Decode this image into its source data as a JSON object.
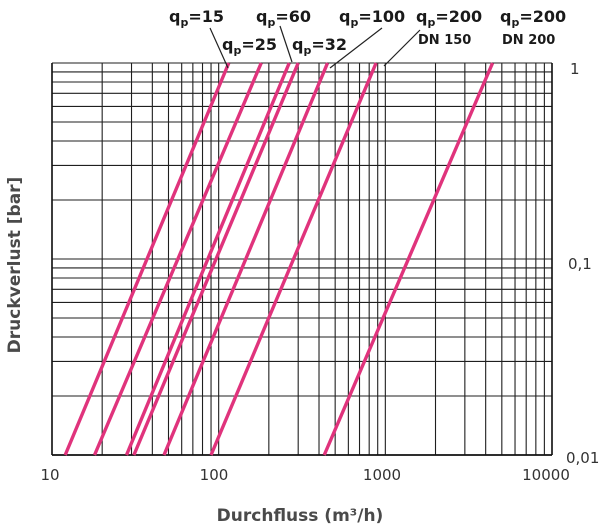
{
  "chart_data": {
    "type": "line",
    "title": "",
    "xlabel": "Durchfluss (m³/h)",
    "ylabel": "Druckverlust [bar]",
    "x_scale": "log",
    "y_scale": "log",
    "xlim": [
      10,
      10000
    ],
    "ylim": [
      0.01,
      1
    ],
    "x_ticks": [
      10,
      100,
      1000,
      10000
    ],
    "x_tick_labels": [
      "10",
      "100",
      "1000",
      "10000"
    ],
    "y_ticks": [
      0.01,
      0.1,
      1
    ],
    "y_tick_labels": [
      "0,01",
      "0,1",
      "1"
    ],
    "grid": true,
    "line_color": "#e0337c",
    "series": [
      {
        "name": "qp=15",
        "x": [
          12,
          115
        ],
        "y": [
          0.01,
          1
        ]
      },
      {
        "name": "qp=25",
        "x": [
          18,
          180
        ],
        "y": [
          0.01,
          1
        ]
      },
      {
        "name": "qp=32",
        "x": [
          28,
          265
        ],
        "y": [
          0.01,
          1
        ]
      },
      {
        "name": "qp=60",
        "x": [
          31,
          300
        ],
        "y": [
          0.01,
          1
        ]
      },
      {
        "name": "qp=100",
        "x": [
          47,
          450
        ],
        "y": [
          0.01,
          1
        ]
      },
      {
        "name": "qp=200 DN 150",
        "x": [
          90,
          880
        ],
        "y": [
          0.01,
          1
        ]
      },
      {
        "name": "qp=200 DN 200",
        "x": [
          430,
          4400
        ],
        "y": [
          0.01,
          1
        ]
      }
    ],
    "curve_labels": [
      {
        "q": "q",
        "sub": "p",
        "value": "=15"
      },
      {
        "q": "q",
        "sub": "p",
        "value": "=25"
      },
      {
        "q": "q",
        "sub": "p",
        "value": "=60"
      },
      {
        "q": "q",
        "sub": "p",
        "value": "=32"
      },
      {
        "q": "q",
        "sub": "p",
        "value": "=100"
      },
      {
        "q": "q",
        "sub": "p",
        "value": "=200",
        "line2": "DN 150"
      },
      {
        "q": "q",
        "sub": "p",
        "value": "=200",
        "line2": "DN 200"
      }
    ]
  }
}
